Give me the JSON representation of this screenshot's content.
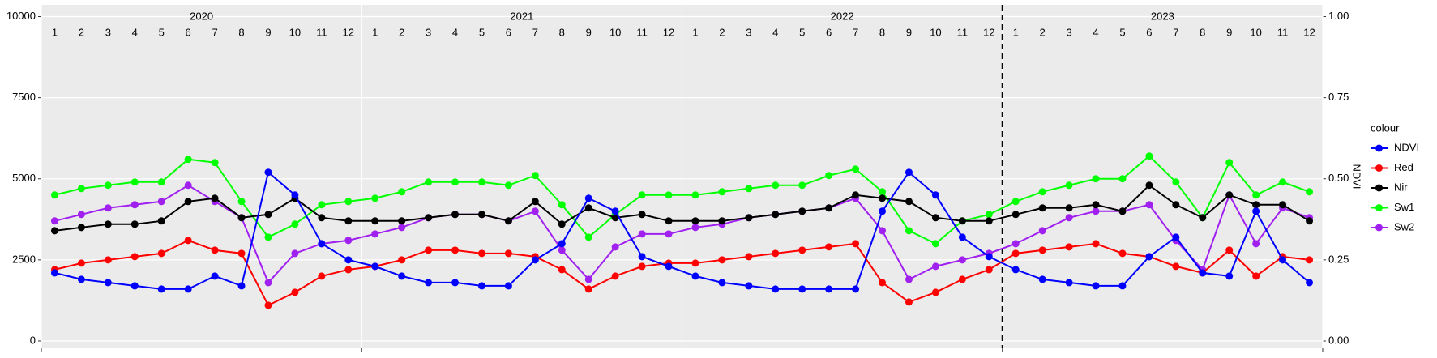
{
  "chart_data": {
    "type": "line",
    "x_strip": {
      "years": [
        "2020",
        "2021",
        "2022",
        "2023"
      ],
      "months": [
        "1",
        "2",
        "3",
        "4",
        "5",
        "6",
        "7",
        "8",
        "9",
        "10",
        "11",
        "12"
      ]
    },
    "x": [
      0.5,
      1.5,
      2.5,
      3.5,
      4.5,
      5.5,
      6.5,
      7.5,
      8.5,
      9.5,
      10.5,
      11.5,
      12.5,
      13.5,
      14.5,
      15.5,
      16.5,
      17.5,
      18.5,
      19.5,
      20.5,
      21.5,
      22.5,
      23.5,
      24.5,
      25.5,
      26.5,
      27.5,
      28.5,
      29.5,
      30.5,
      31.5,
      32.5,
      33.5,
      34.5,
      35.5,
      36.5,
      37.5,
      38.5,
      39.5,
      40.5,
      41.5,
      42.5,
      43.5,
      44.5,
      45.5,
      46.5,
      47.5
    ],
    "xlim": [
      0,
      48
    ],
    "xticks": [
      0,
      12,
      24,
      36,
      48
    ],
    "ylim": [
      -225,
      10362
    ],
    "yticks": [
      0,
      2500,
      5000,
      7500,
      10000
    ],
    "y2lim": [
      -0.0225,
      1.0362
    ],
    "y2ticks": [
      {
        "value": 0,
        "label": "0.00"
      },
      {
        "value": 0.25,
        "label": "0.25"
      },
      {
        "value": 0.5,
        "label": "0.50"
      },
      {
        "value": 0.75,
        "label": "0.75"
      },
      {
        "value": 1,
        "label": "1.00"
      }
    ],
    "y2_label": "NDVI",
    "vline": 36,
    "grid": true,
    "legend_title": "colour",
    "legend_position": "right",
    "series": [
      {
        "name": "NDVI",
        "color": "#0000ff",
        "axis": "y2",
        "values": [
          0.21,
          0.19,
          0.18,
          0.17,
          0.16,
          0.16,
          0.2,
          0.17,
          0.52,
          0.45,
          0.3,
          0.25,
          0.23,
          0.2,
          0.18,
          0.18,
          0.17,
          0.17,
          0.25,
          0.3,
          0.44,
          0.4,
          0.26,
          0.23,
          0.2,
          0.18,
          0.17,
          0.16,
          0.16,
          0.16,
          0.16,
          0.4,
          0.52,
          0.45,
          0.32,
          0.26,
          0.22,
          0.19,
          0.18,
          0.17,
          0.17,
          0.26,
          0.32,
          0.21,
          0.2,
          0.4,
          0.25,
          0.18
        ]
      },
      {
        "name": "Red",
        "color": "#ff0000",
        "values": [
          2200,
          2400,
          2500,
          2600,
          2700,
          3100,
          2800,
          2700,
          1100,
          1500,
          2000,
          2200,
          2300,
          2500,
          2800,
          2800,
          2700,
          2700,
          2600,
          2200,
          1600,
          2000,
          2300,
          2400,
          2400,
          2500,
          2600,
          2700,
          2800,
          2900,
          3000,
          1800,
          1200,
          1500,
          1900,
          2200,
          2700,
          2800,
          2900,
          3000,
          2700,
          2600,
          2300,
          2100,
          2800,
          2000,
          2600,
          2500
        ]
      },
      {
        "name": "Nir",
        "color": "#000000",
        "values": [
          3400,
          3500,
          3600,
          3600,
          3700,
          4300,
          4400,
          3800,
          3900,
          4400,
          3800,
          3700,
          3700,
          3700,
          3800,
          3900,
          3900,
          3700,
          4300,
          3600,
          4100,
          3800,
          3900,
          3700,
          3700,
          3700,
          3800,
          3900,
          4000,
          4100,
          4500,
          4400,
          4300,
          3800,
          3700,
          3700,
          3900,
          4100,
          4100,
          4200,
          4000,
          4800,
          4200,
          3800,
          4500,
          4200,
          4200,
          3700
        ]
      },
      {
        "name": "Sw1",
        "color": "#00ff00",
        "values": [
          4500,
          4700,
          4800,
          4900,
          4900,
          5600,
          5500,
          4300,
          3200,
          3600,
          4200,
          4300,
          4400,
          4600,
          4900,
          4900,
          4900,
          4800,
          5100,
          4200,
          3200,
          3900,
          4500,
          4500,
          4500,
          4600,
          4700,
          4800,
          4800,
          5100,
          5300,
          4600,
          3400,
          3000,
          3700,
          3900,
          4300,
          4600,
          4800,
          5000,
          5000,
          5700,
          4900,
          3800,
          5500,
          4500,
          4900,
          4600
        ]
      },
      {
        "name": "Sw2",
        "color": "#a020f0",
        "values": [
          3700,
          3900,
          4100,
          4200,
          4300,
          4800,
          4300,
          3800,
          1800,
          2700,
          3000,
          3100,
          3300,
          3500,
          3800,
          3900,
          3900,
          3700,
          4000,
          2800,
          1900,
          2900,
          3300,
          3300,
          3500,
          3600,
          3800,
          3900,
          4000,
          4100,
          4400,
          3400,
          1900,
          2300,
          2500,
          2700,
          3000,
          3400,
          3800,
          4000,
          4000,
          4200,
          3100,
          2200,
          4500,
          3000,
          4100,
          3800
        ]
      }
    ]
  }
}
